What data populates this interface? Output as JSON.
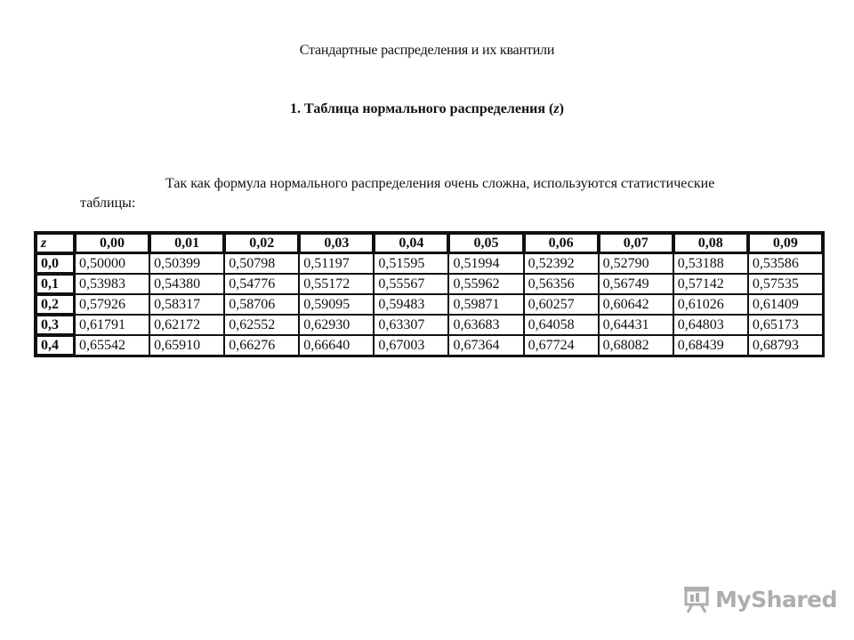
{
  "document": {
    "heading": "Стандартные распределения и их квантили",
    "section_title_prefix": "1. Таблица нормального распределения (",
    "section_title_symbol": "z",
    "section_title_suffix": ")",
    "intro_text": "Так как формула нормального распределения очень сложна, используются статистические таблицы:"
  },
  "table": {
    "corner_label": "z",
    "column_headers": [
      "0,00",
      "0,01",
      "0,02",
      "0,03",
      "0,04",
      "0,05",
      "0,06",
      "0,07",
      "0,08",
      "0,09"
    ],
    "rows": [
      {
        "z": "0,0",
        "values": [
          "0,50000",
          "0,50399",
          "0,50798",
          "0,51197",
          "0,51595",
          "0,51994",
          "0,52392",
          "0,52790",
          "0,53188",
          "0,53586"
        ]
      },
      {
        "z": "0,1",
        "values": [
          "0,53983",
          "0,54380",
          "0,54776",
          "0,55172",
          "0,55567",
          "0,55962",
          "0,56356",
          "0,56749",
          "0,57142",
          "0,57535"
        ]
      },
      {
        "z": "0,2",
        "values": [
          "0,57926",
          "0,58317",
          "0,58706",
          "0,59095",
          "0,59483",
          "0,59871",
          "0,60257",
          "0,60642",
          "0,61026",
          "0,61409"
        ]
      },
      {
        "z": "0,3",
        "values": [
          "0,61791",
          "0,62172",
          "0,62552",
          "0,62930",
          "0,63307",
          "0,63683",
          "0,64058",
          "0,64431",
          "0,64803",
          "0,65173"
        ]
      },
      {
        "z": "0,4",
        "values": [
          "0,65542",
          "0,65910",
          "0,66276",
          "0,66640",
          "0,67003",
          "0,67364",
          "0,67724",
          "0,68082",
          "0,68439",
          "0,68793"
        ]
      }
    ]
  },
  "watermark": {
    "text": "MyShared",
    "icon": "presentation-board-icon"
  }
}
